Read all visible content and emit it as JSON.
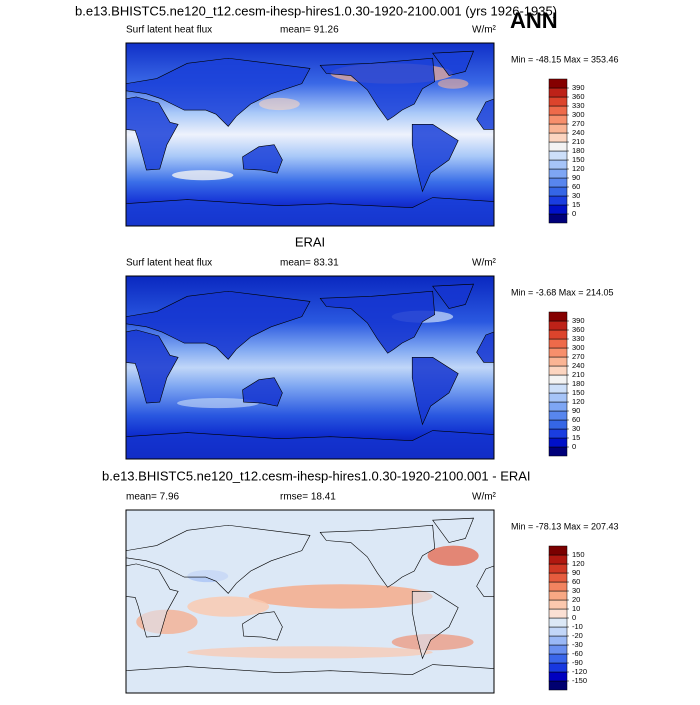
{
  "title": "b.e13.BHISTC5.ne120_t12.cesm-ihesp-hires1.0.30-1920-2100.001 (yrs 1926-1935)",
  "season": "ANN",
  "panels": [
    {
      "left_label": "Surf latent heat flux",
      "center_label": "mean=  91.26",
      "units": "W/m²",
      "minmax": "Min = -48.15 Max = 353.46",
      "colorbar": {
        "levels": [
          0,
          15,
          30,
          60,
          90,
          120,
          150,
          180,
          210,
          240,
          270,
          300,
          330,
          360,
          390
        ],
        "colors": [
          "#00007a",
          "#0010c8",
          "#1a3de0",
          "#3566e6",
          "#5886ee",
          "#7ea6f4",
          "#a6c4f8",
          "#cddff9",
          "#f3f3f3",
          "#fcd5c0",
          "#fab494",
          "#f78f6c",
          "#ee6a4a",
          "#dc442c",
          "#bd2218",
          "#850000"
        ]
      }
    },
    {
      "title": "ERAI",
      "left_label": "Surf latent heat flux",
      "center_label": "mean=  83.31",
      "units": "W/m²",
      "minmax": "Min =  -3.68 Max = 214.05",
      "colorbar": {
        "levels": [
          0,
          15,
          30,
          60,
          90,
          120,
          150,
          180,
          210,
          240,
          270,
          300,
          330,
          360,
          390
        ],
        "colors": [
          "#00007a",
          "#0010c8",
          "#1a3de0",
          "#3566e6",
          "#5886ee",
          "#7ea6f4",
          "#a6c4f8",
          "#cddff9",
          "#f3f3f3",
          "#fcd5c0",
          "#fab494",
          "#f78f6c",
          "#ee6a4a",
          "#dc442c",
          "#bd2218",
          "#850000"
        ]
      }
    },
    {
      "title": "b.e13.BHISTC5.ne120_t12.cesm-ihesp-hires1.0.30-1920-2100.001 - ERAI",
      "left_label": "mean=  7.96",
      "center_label": "rmse=  18.41",
      "units": "W/m²",
      "minmax": "Min = -78.13 Max = 207.43",
      "colorbar": {
        "levels": [
          -150,
          -120,
          -90,
          -60,
          -30,
          -20,
          -10,
          0,
          10,
          20,
          30,
          60,
          90,
          120,
          150
        ],
        "colors": [
          "#000070",
          "#0000c0",
          "#1838e0",
          "#3a66ea",
          "#6a90f0",
          "#9ab8f6",
          "#c2d6f8",
          "#dce8f6",
          "#fbe0d4",
          "#fbc8ae",
          "#f8a884",
          "#f28460",
          "#e65c3e",
          "#d03824",
          "#b01810",
          "#7a0000"
        ]
      }
    }
  ]
}
